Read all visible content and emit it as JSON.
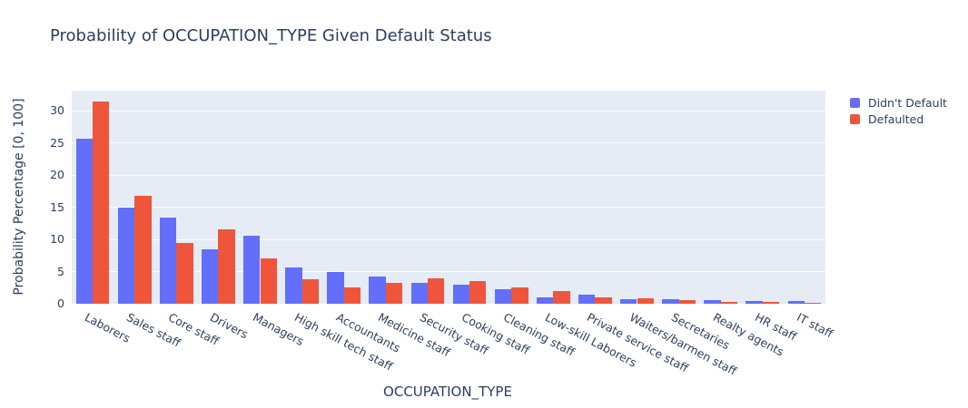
{
  "title": "Probability of OCCUPATION_TYPE Given Default Status",
  "colors": {
    "plot_background": "#e5ecf6",
    "gridline": "#ffffff",
    "text": "#2a3f5f",
    "series_blue": "#636efa",
    "series_red": "#ef553b"
  },
  "chart_data": {
    "type": "bar",
    "title": "Probability of OCCUPATION_TYPE Given Default Status",
    "xlabel": "OCCUPATION_TYPE",
    "ylabel": "Probability Percentage [0, 100]",
    "ylim": [
      0,
      33.1
    ],
    "yticks": [
      0,
      5,
      10,
      15,
      20,
      25,
      30
    ],
    "grid": true,
    "legend_position": "right",
    "bar_mode": "grouped",
    "categories": [
      "Laborers",
      "Sales staff",
      "Core staff",
      "Drivers",
      "Managers",
      "High skill tech staff",
      "Accountants",
      "Medicine staff",
      "Security staff",
      "Cooking staff",
      "Cleaning staff",
      "Low-skill Laborers",
      "Private service staff",
      "Waiters/barmen staff",
      "Secretaries",
      "Realty agents",
      "HR staff",
      "IT staff"
    ],
    "series": [
      {
        "name": "Didn't Default",
        "color": "#636efa",
        "values": [
          25.6,
          14.9,
          13.4,
          8.5,
          10.5,
          5.6,
          4.9,
          4.2,
          3.3,
          2.9,
          2.2,
          1.0,
          1.4,
          0.65,
          0.75,
          0.55,
          0.45,
          0.45
        ]
      },
      {
        "name": "Defaulted",
        "color": "#ef553b",
        "values": [
          31.4,
          16.7,
          9.5,
          11.5,
          7.1,
          3.8,
          2.6,
          3.2,
          3.9,
          3.5,
          2.5,
          2.0,
          1.0,
          0.9,
          0.5,
          0.35,
          0.25,
          0.2
        ]
      }
    ]
  }
}
